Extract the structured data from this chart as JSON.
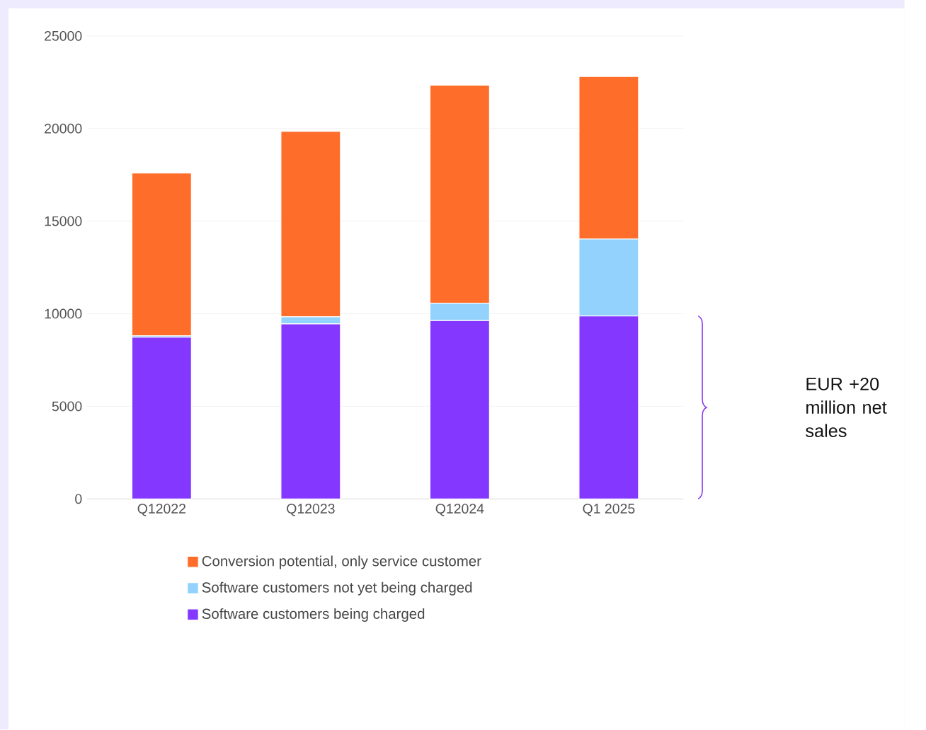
{
  "chart_data": {
    "type": "bar",
    "stacked": true,
    "categories": [
      "Q12022",
      "Q12023",
      "Q12024",
      "Q1 2025"
    ],
    "series": [
      {
        "name": "Software customers being charged",
        "color": "#8438ff",
        "values": [
          8730,
          9450,
          9630,
          9880
        ]
      },
      {
        "name": "Software customers not yet being charged",
        "color": "#92d2fc",
        "values": [
          80,
          380,
          940,
          4150
        ]
      },
      {
        "name": "Conversion potential, only service customer",
        "color": "#ff6d2a",
        "values": [
          8780,
          10020,
          11770,
          8780
        ]
      }
    ],
    "ylim": [
      0,
      25000
    ],
    "yticks": [
      0,
      5000,
      10000,
      15000,
      20000,
      25000
    ],
    "grid": "y",
    "legend": "bottom",
    "annotations": [
      "EUR +20 million net sales"
    ]
  }
}
